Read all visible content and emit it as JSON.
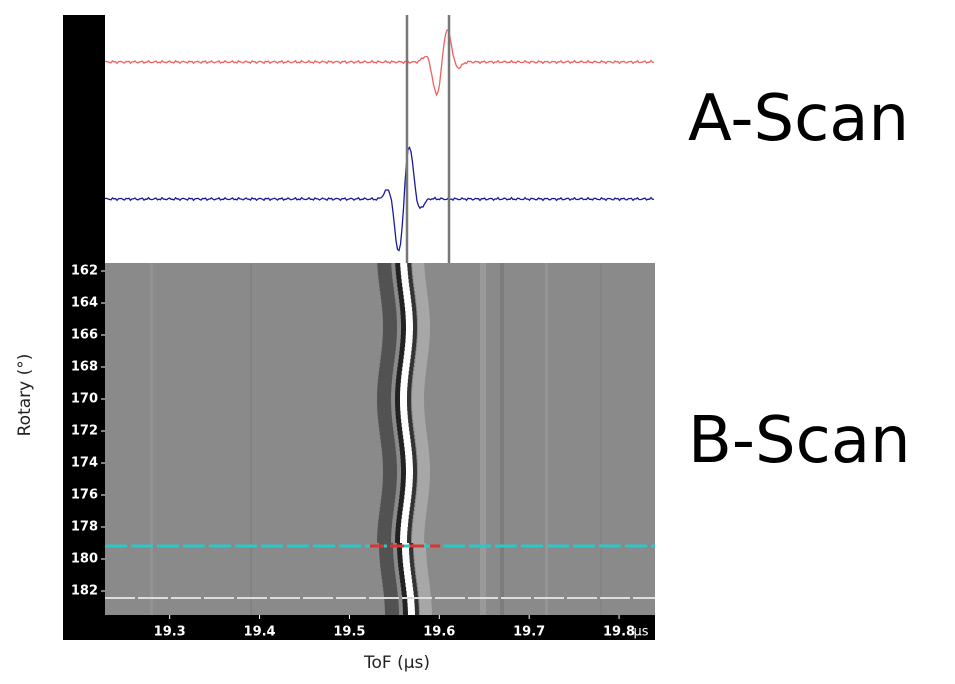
{
  "chart_data": {
    "type": "bscan",
    "x_label": "ToF (µs)",
    "x_unit": "µs",
    "y_label": "Rotary (°)",
    "xlim": [
      19.228,
      19.84
    ],
    "xticks": [
      19.3,
      19.4,
      19.5,
      19.6,
      19.7,
      19.8
    ],
    "ylim": [
      161.5,
      183.5
    ],
    "y_inverted": true,
    "yticks": [
      162,
      164,
      166,
      168,
      170,
      172,
      174,
      176,
      178,
      180,
      182
    ],
    "annotations": [
      "A-Scan",
      "B-Scan"
    ]
  }
}
